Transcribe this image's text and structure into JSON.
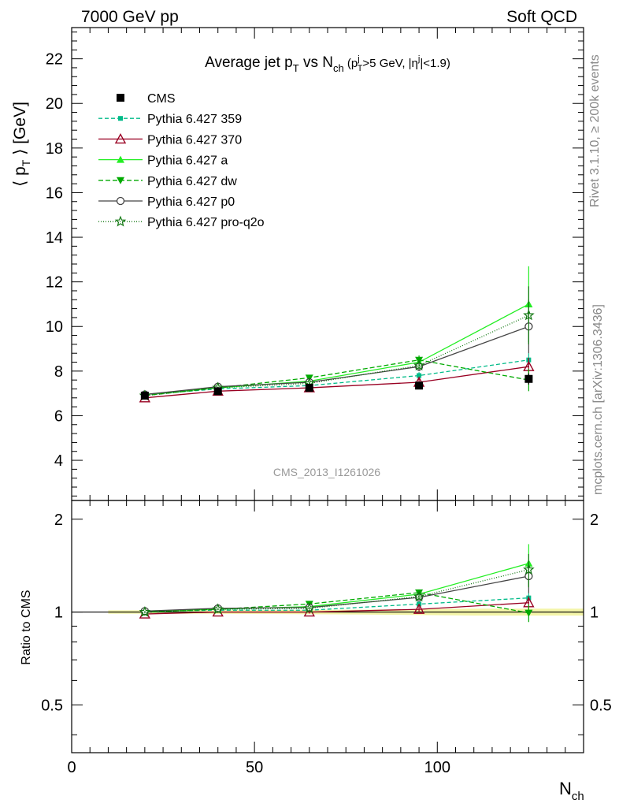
{
  "header": {
    "left": "7000 GeV pp",
    "right": "Soft QCD"
  },
  "title": {
    "main": "Average jet p",
    "main_sub": "T",
    "vs": " vs N",
    "vs_sub": "ch",
    "cut_open": " (p",
    "cut_sup": "j",
    "cut_sub": "T",
    "cut_mid": ">5 GeV, |η",
    "cut_sup2": "j",
    "cut_end": "|<1.9)"
  },
  "side_labels": {
    "rivet": "Rivet 3.1.10, ≥ 200k events",
    "mcplots": "mcplots.cern.ch [arXiv:1306.3436]"
  },
  "watermark": "CMS_2013_I1261026",
  "ylabel_main": {
    "open": "⟨ p",
    "sub": "T",
    "close": " ⟩ [GeV]"
  },
  "ylabel_ratio": "Ratio to CMS",
  "xlabel": {
    "base": "N",
    "sub": "ch"
  },
  "chart_data": {
    "type": "line",
    "x": [
      20,
      40,
      65,
      95,
      125
    ],
    "xlim": [
      0,
      140
    ],
    "x_ticks": [
      "0",
      "50",
      "100"
    ],
    "main": {
      "ylim": [
        2.2,
        23.4
      ],
      "y_ticks": [
        "4",
        "6",
        "8",
        "10",
        "12",
        "14",
        "16",
        "18",
        "20",
        "22"
      ]
    },
    "ratio": {
      "ylim": [
        0.35,
        2.3
      ],
      "scale": "log",
      "y_ticks": [
        "0.5",
        "1",
        "2"
      ]
    },
    "data": {
      "name": "CMS",
      "values": [
        6.9,
        7.1,
        7.25,
        7.35,
        7.65
      ],
      "errors": [
        0.08,
        0.08,
        0.1,
        0.15,
        0.25
      ]
    },
    "series": [
      {
        "name": "Pythia 6.427 359",
        "color": "#00bb88",
        "dash": "5,3",
        "marker": "square-small",
        "values": [
          6.95,
          7.2,
          7.35,
          7.8,
          8.5
        ],
        "errors": [
          0.05,
          0.05,
          0.08,
          0.15,
          0.3
        ]
      },
      {
        "name": "Pythia 6.427 370",
        "color": "#990022",
        "dash": "",
        "marker": "triangle-open",
        "values": [
          6.8,
          7.1,
          7.25,
          7.5,
          8.2
        ],
        "errors": [
          0.05,
          0.05,
          0.08,
          0.15,
          0.4
        ]
      },
      {
        "name": "Pythia 6.427 a",
        "color": "#22ee22",
        "dash": "",
        "marker": "triangle",
        "values": [
          6.95,
          7.25,
          7.55,
          8.4,
          11.0
        ],
        "errors": [
          0.05,
          0.05,
          0.08,
          0.2,
          1.7
        ]
      },
      {
        "name": "Pythia 6.427 dw",
        "color": "#00aa00",
        "dash": "6,3",
        "marker": "triangle-down",
        "values": [
          6.9,
          7.25,
          7.7,
          8.5,
          7.6
        ],
        "errors": [
          0.05,
          0.05,
          0.08,
          0.2,
          0.5
        ]
      },
      {
        "name": "Pythia 6.427 p0",
        "color": "#444444",
        "dash": "",
        "marker": "circle-open",
        "values": [
          6.95,
          7.3,
          7.5,
          8.2,
          10.0
        ],
        "errors": [
          0.05,
          0.05,
          0.08,
          0.2,
          1.2
        ]
      },
      {
        "name": "Pythia 6.427 pro-q2o",
        "color": "#117711",
        "dash": "1,2",
        "marker": "star",
        "values": [
          6.9,
          7.25,
          7.45,
          8.25,
          10.5
        ],
        "errors": [
          0.05,
          0.05,
          0.08,
          0.2,
          1.3
        ]
      }
    ]
  }
}
